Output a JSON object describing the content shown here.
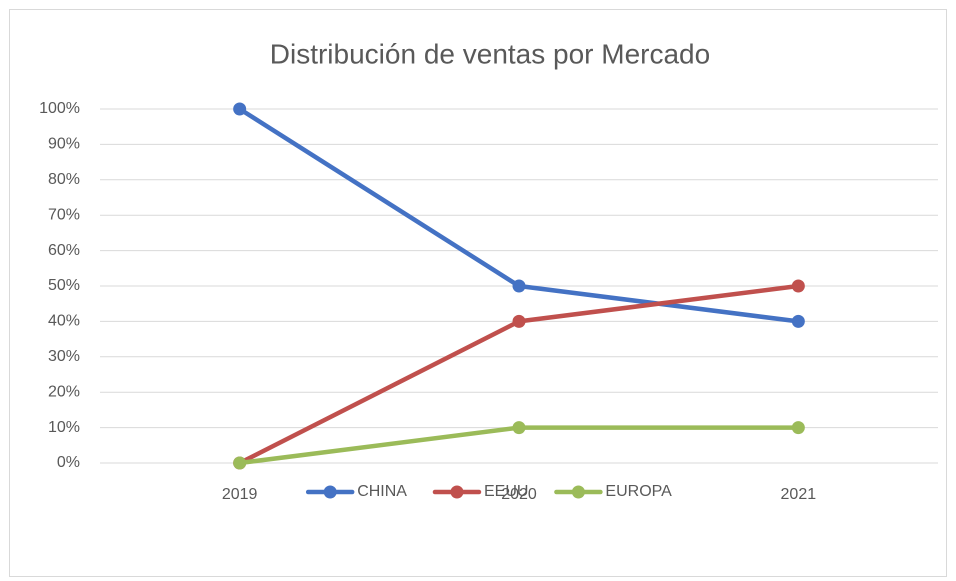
{
  "chart_data": {
    "type": "line",
    "title": "Distribución de ventas por Mercado",
    "categories": [
      "2019",
      "2020",
      "2021"
    ],
    "series": [
      {
        "name": "CHINA",
        "color": "#4472c4",
        "values": [
          100,
          50,
          40
        ]
      },
      {
        "name": "EEUU",
        "color": "#c0504d",
        "values": [
          0,
          40,
          50
        ]
      },
      {
        "name": "EUROPA",
        "color": "#9bbb59",
        "values": [
          0,
          10,
          10
        ]
      }
    ],
    "ylim": [
      0,
      100
    ],
    "yticks": [
      {
        "value": 0,
        "label": "0%"
      },
      {
        "value": 10,
        "label": "10%"
      },
      {
        "value": 20,
        "label": "20%"
      },
      {
        "value": 30,
        "label": "30%"
      },
      {
        "value": 40,
        "label": "40%"
      },
      {
        "value": 50,
        "label": "50%"
      },
      {
        "value": 60,
        "label": "60%"
      },
      {
        "value": 70,
        "label": "70%"
      },
      {
        "value": 80,
        "label": "80%"
      },
      {
        "value": 90,
        "label": "90%"
      },
      {
        "value": 100,
        "label": "100%"
      }
    ],
    "grid": true,
    "legend": "bottom"
  }
}
